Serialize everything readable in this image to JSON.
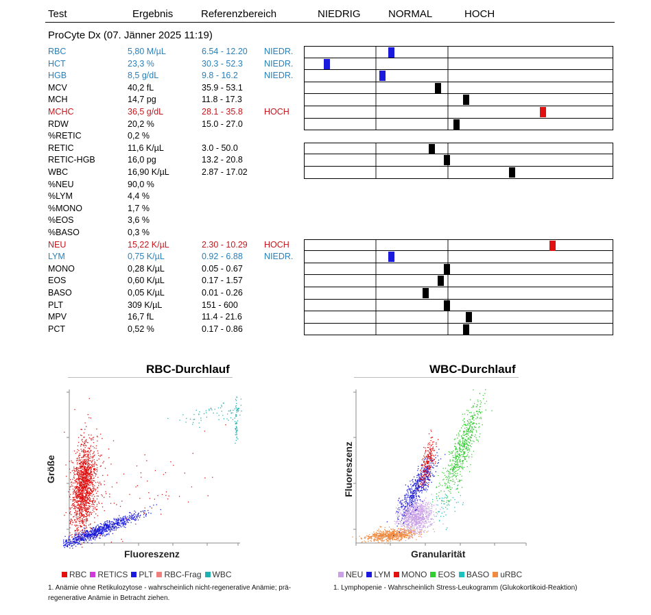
{
  "header": {
    "test": "Test",
    "result": "Ergebnis",
    "reference": "Referenzbereich",
    "low": "NIEDRIG",
    "normal": "NORMAL",
    "high": "HOCH"
  },
  "title": "ProCyte Dx (07. Jänner 2025 11:19)",
  "rows": [
    {
      "name": "RBC",
      "result": "5,80 M/µL",
      "ref": "6.54 - 12.20",
      "flag": "NIEDR.",
      "status": "low",
      "marker": 0.28
    },
    {
      "name": "HCT",
      "result": "23,3 %",
      "ref": "30.3 - 52.3",
      "flag": "NIEDR.",
      "status": "low",
      "marker": 0.07
    },
    {
      "name": "HGB",
      "result": "8,5 g/dL",
      "ref": "9.8 - 16.2",
      "flag": "NIEDR.",
      "status": "low",
      "marker": 0.25
    },
    {
      "name": "MCV",
      "result": "40,2 fL",
      "ref": "35.9 - 53.1",
      "flag": "",
      "status": "normal",
      "marker": 0.43
    },
    {
      "name": "MCH",
      "result": "14,7 pg",
      "ref": "11.8 - 17.3",
      "flag": "",
      "status": "normal",
      "marker": 0.52
    },
    {
      "name": "MCHC",
      "result": "36,5 g/dL",
      "ref": "28.1 - 35.8",
      "flag": "HOCH",
      "status": "high",
      "marker": 0.77
    },
    {
      "name": "RDW",
      "result": "20,2 %",
      "ref": "15.0 - 27.0",
      "flag": "",
      "status": "normal",
      "marker": 0.49
    },
    {
      "name": "%RETIC",
      "result": "0,2 %",
      "ref": "",
      "flag": "",
      "status": "none",
      "marker": null
    },
    {
      "name": "RETIC",
      "result": "11,6 K/µL",
      "ref": "3.0 - 50.0",
      "flag": "",
      "status": "normal",
      "marker": 0.41
    },
    {
      "name": "RETIC-HGB",
      "result": "16,0 pg",
      "ref": "13.2 - 20.8",
      "flag": "",
      "status": "normal",
      "marker": 0.46
    },
    {
      "name": "WBC",
      "result": "16,90 K/µL",
      "ref": "2.87 - 17.02",
      "flag": "",
      "status": "normal",
      "marker": 0.67
    },
    {
      "name": "%NEU",
      "result": "90,0 %",
      "ref": "",
      "flag": "",
      "status": "none",
      "marker": null
    },
    {
      "name": "%LYM",
      "result": "4,4 %",
      "ref": "",
      "flag": "",
      "status": "none",
      "marker": null
    },
    {
      "name": "%MONO",
      "result": "1,7 %",
      "ref": "",
      "flag": "",
      "status": "none",
      "marker": null
    },
    {
      "name": "%EOS",
      "result": "3,6 %",
      "ref": "",
      "flag": "",
      "status": "none",
      "marker": null
    },
    {
      "name": "%BASO",
      "result": "0,3 %",
      "ref": "",
      "flag": "",
      "status": "none",
      "marker": null
    },
    {
      "name": "NEU",
      "result": "15,22 K/µL",
      "ref": "2.30 - 10.29",
      "flag": "HOCH",
      "status": "high",
      "marker": 0.8
    },
    {
      "name": "LYM",
      "result": "0,75 K/µL",
      "ref": "0.92 - 6.88",
      "flag": "NIEDR.",
      "status": "low",
      "marker": 0.28
    },
    {
      "name": "MONO",
      "result": "0,28 K/µL",
      "ref": "0.05 - 0.67",
      "flag": "",
      "status": "normal",
      "marker": 0.46
    },
    {
      "name": "EOS",
      "result": "0,60 K/µL",
      "ref": "0.17 - 1.57",
      "flag": "",
      "status": "normal",
      "marker": 0.44
    },
    {
      "name": "BASO",
      "result": "0,05 K/µL",
      "ref": "0.01 - 0.26",
      "flag": "",
      "status": "normal",
      "marker": 0.39
    },
    {
      "name": "PLT",
      "result": "309 K/µL",
      "ref": "151 - 600",
      "flag": "",
      "status": "normal",
      "marker": 0.46
    },
    {
      "name": "MPV",
      "result": "16,7 fL",
      "ref": "11.4 - 21.6",
      "flag": "",
      "status": "normal",
      "marker": 0.53
    },
    {
      "name": "PCT",
      "result": "0,52 %",
      "ref": "0.17 - 0.86",
      "flag": "",
      "status": "normal",
      "marker": 0.52
    }
  ],
  "rbc_chart": {
    "title": "RBC-Durchlauf",
    "xlabel": "Fluoreszenz",
    "ylabel": "Größe",
    "legend": [
      {
        "label": "RBC",
        "color": "#e01010"
      },
      {
        "label": "RETICS",
        "color": "#d03ad8"
      },
      {
        "label": "PLT",
        "color": "#1a1adc"
      },
      {
        "label": "RBC-Frag",
        "color": "#f08080"
      },
      {
        "label": "WBC",
        "color": "#20b0b0"
      }
    ],
    "note": "1. Anämie ohne Retikulozytose - wahrscheinlich nicht-regenerative Anämie; prä-regenerative Anämie in Betracht ziehen.",
    "note_line1": "1. Anämie ohne Retikulozytose - wahrscheinlich nicht-regenerative Anämie; prä-",
    "note_line2": "regenerative Anämie in Betracht ziehen."
  },
  "wbc_chart": {
    "title": "WBC-Durchlauf",
    "xlabel": "Granularität",
    "ylabel": "Fluoreszenz",
    "legend": [
      {
        "label": "NEU",
        "color": "#c9a0e6"
      },
      {
        "label": "LYM",
        "color": "#1a1adc"
      },
      {
        "label": "MONO",
        "color": "#e01010"
      },
      {
        "label": "EOS",
        "color": "#33cc33"
      },
      {
        "label": "BASO",
        "color": "#20c0c0"
      },
      {
        "label": "uRBC",
        "color": "#f08a40"
      }
    ],
    "note": "1. Lymphopenie - Wahrscheinlich Stress-Leukogramm (Glukokortikoid-Reaktion)"
  }
}
